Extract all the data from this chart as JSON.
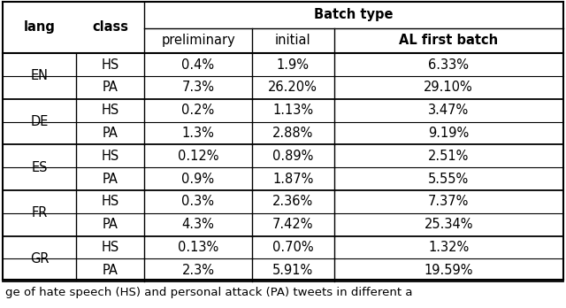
{
  "col_headers_row2": [
    "lang",
    "class",
    "preliminary",
    "initial",
    "AL first batch"
  ],
  "rows": [
    [
      "EN",
      "HS",
      "0.4%",
      "1.9%",
      "6.33%"
    ],
    [
      "EN",
      "PA",
      "7.3%",
      "26.20%",
      "29.10%"
    ],
    [
      "DE",
      "HS",
      "0.2%",
      "1.13%",
      "3.47%"
    ],
    [
      "DE",
      "PA",
      "1.3%",
      "2.88%",
      "9.19%"
    ],
    [
      "ES",
      "HS",
      "0.12%",
      "0.89%",
      "2.51%"
    ],
    [
      "ES",
      "PA",
      "0.9%",
      "1.87%",
      "5.55%"
    ],
    [
      "FR",
      "HS",
      "0.3%",
      "2.36%",
      "7.37%"
    ],
    [
      "FR",
      "PA",
      "4.3%",
      "7.42%",
      "25.34%"
    ],
    [
      "GR",
      "HS",
      "0.13%",
      "0.70%",
      "1.32%"
    ],
    [
      "GR",
      "PA",
      "2.3%",
      "5.91%",
      "19.59%"
    ]
  ],
  "caption": "ge of hate speech (HS) and personal attack (PA) tweets in different a",
  "background_color": "#ffffff",
  "text_color": "#000000",
  "header_fontsize": 10.5,
  "cell_fontsize": 10.5,
  "caption_fontsize": 9.5,
  "langs": [
    "EN",
    "DE",
    "ES",
    "FR",
    "GR"
  ],
  "batch_type_label": "Batch type"
}
